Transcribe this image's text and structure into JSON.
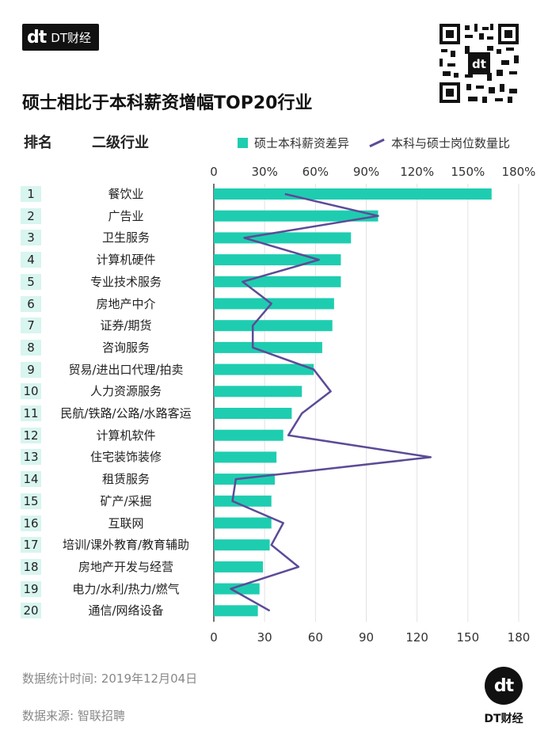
{
  "brand": {
    "mark": "dt",
    "name": "DT财经"
  },
  "title": "硕士相比于本科薪资增幅TOP20行业",
  "headers": {
    "rank": "排名",
    "industry": "二级行业"
  },
  "legend": {
    "bar": "硕士本科薪资差异",
    "line": "本科与硕士岗位数量比"
  },
  "colors": {
    "bar": "#1ecdb0",
    "line": "#5c4b97",
    "rank_bg": "#d8f5ef"
  },
  "footer": {
    "date": "数据统计时间: 2019年12月04日",
    "source": "数据来源: 智联招聘"
  },
  "chart_data": {
    "type": "bar",
    "orientation": "horizontal",
    "title": "硕士相比于本科薪资增幅TOP20行业",
    "ranks": [
      "1",
      "2",
      "3",
      "4",
      "5",
      "6",
      "7",
      "8",
      "9",
      "10",
      "11",
      "12",
      "13",
      "14",
      "15",
      "16",
      "17",
      "18",
      "19",
      "20"
    ],
    "categories": [
      "餐饮业",
      "广告业",
      "卫生服务",
      "计算机硬件",
      "专业技术服务",
      "房地产中介",
      "证券/期货",
      "咨询服务",
      "贸易/进出口代理/拍卖",
      "人力资源服务",
      "民航/铁路/公路/水路客运",
      "计算机软件",
      "住宅装饰装修",
      "租赁服务",
      "矿产/采掘",
      "互联网",
      "培训/课外教育/教育辅助",
      "房地产开发与经营",
      "电力/水利/热力/燃气",
      "通信/网络设备"
    ],
    "series": [
      {
        "name": "硕士本科薪资差异",
        "kind": "bar",
        "axis": "top",
        "unit": "%",
        "values": [
          164,
          97,
          81,
          75,
          75,
          71,
          70,
          64,
          59,
          52,
          46,
          41,
          37,
          36,
          34,
          34,
          33,
          29,
          27,
          26
        ]
      },
      {
        "name": "本科与硕士岗位数量比",
        "kind": "line",
        "axis": "bottom",
        "values": [
          42,
          97,
          18,
          62,
          17,
          34,
          23,
          23,
          59,
          69,
          52,
          44,
          128,
          13,
          11,
          41,
          34,
          50,
          10,
          33
        ]
      }
    ],
    "top_axis": {
      "ticks": [
        "0",
        "30%",
        "60%",
        "90%",
        "120%",
        "150%",
        "180%"
      ],
      "range": [
        0,
        180
      ]
    },
    "bottom_axis": {
      "ticks": [
        "0",
        "30",
        "60",
        "90",
        "120",
        "150",
        "180"
      ],
      "range": [
        0,
        180
      ]
    },
    "grid": true
  }
}
